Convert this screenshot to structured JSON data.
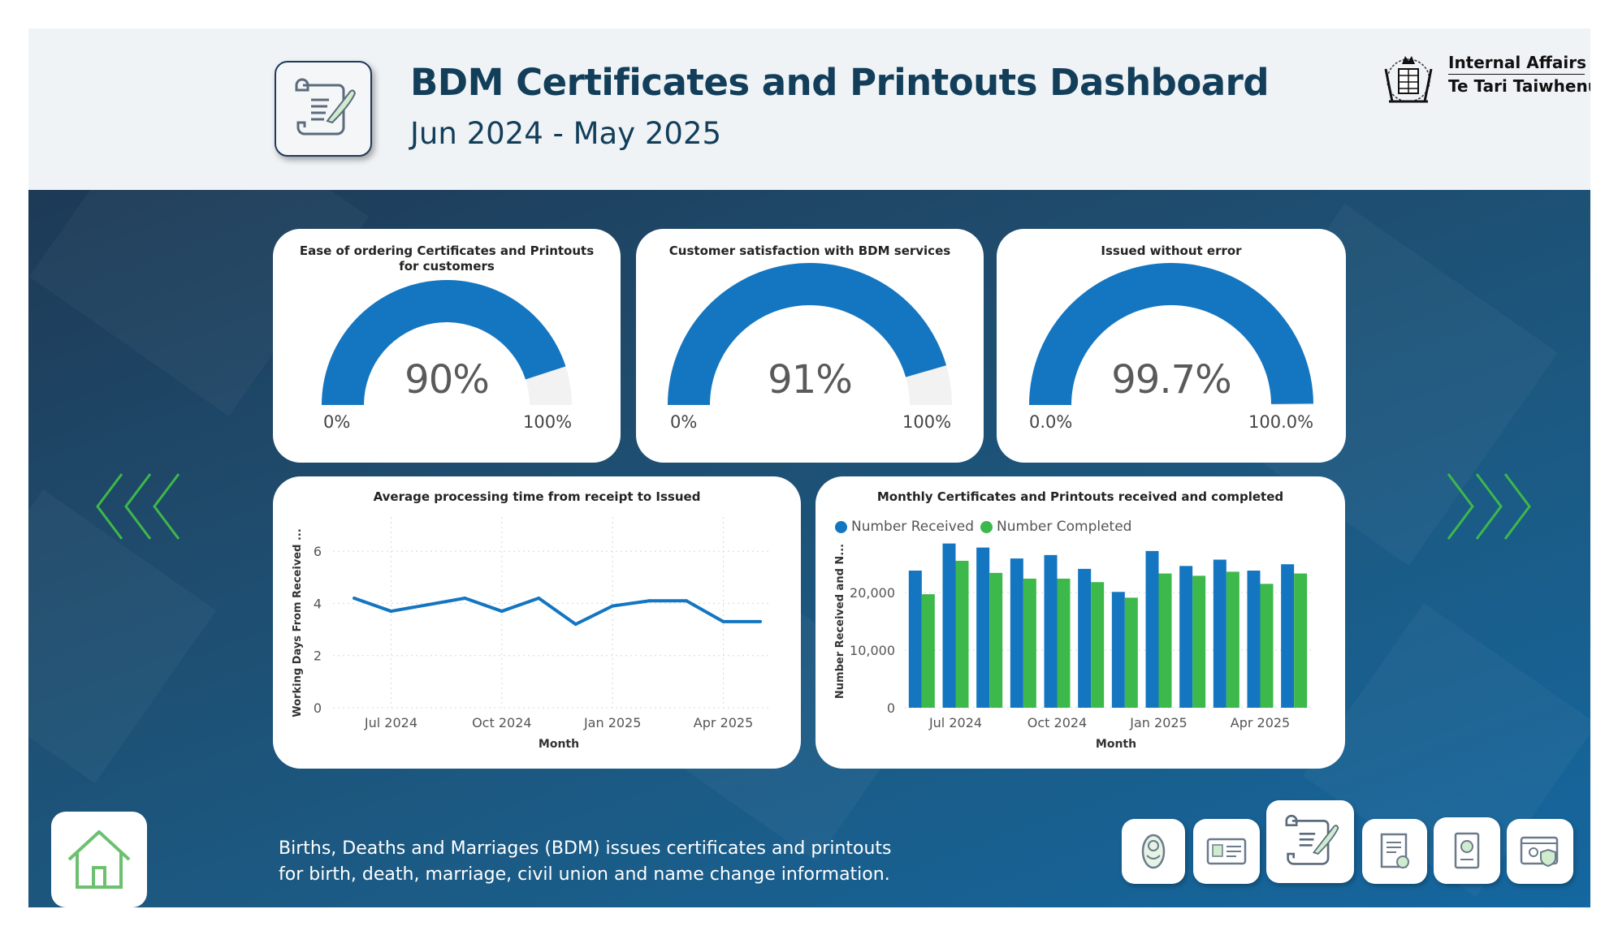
{
  "header": {
    "title": "BDM Certificates and Printouts Dashboard",
    "subtitle": "Jun 2024 - May 2025",
    "icon": "scroll-quill-icon",
    "logo": {
      "line1": "Internal Affairs",
      "line2": "Te Tari Taiwhenua",
      "icon": "nz-coat-of-arms-icon"
    }
  },
  "gauges": [
    {
      "title": "Ease of ordering Certificates and Printouts for customers",
      "value_label": "90%",
      "value": 0.9,
      "min_label": "0%",
      "max_label": "100%"
    },
    {
      "title": "Customer satisfaction with BDM services",
      "value_label": "91%",
      "value": 0.91,
      "min_label": "0%",
      "max_label": "100%"
    },
    {
      "title": "Issued without error",
      "value_label": "99.7%",
      "value": 0.997,
      "min_label": "0.0%",
      "max_label": "100.0%"
    }
  ],
  "colors": {
    "gauge_fill": "#1476c0",
    "gauge_track": "#f2f2f2",
    "received": "#1476c0",
    "completed": "#3db84a",
    "line": "#1476c0",
    "chevron": "#3db84a",
    "title_text": "#123e5a"
  },
  "chart_data": [
    {
      "type": "line",
      "title": "Average processing time from receipt to Issued",
      "xlabel": "Month",
      "ylabel": "Working Days From Received ...",
      "x": [
        "2024-06",
        "2024-07",
        "2024-08",
        "2024-09",
        "2024-10",
        "2024-11",
        "2024-12",
        "2025-01",
        "2025-02",
        "2025-03",
        "2025-04",
        "2025-05"
      ],
      "x_tick_labels": [
        "Jul 2024",
        "Oct 2024",
        "Jan 2025",
        "Apr 2025"
      ],
      "x_tick_index": [
        1,
        4,
        7,
        10
      ],
      "y_ticks": [
        0,
        2,
        4,
        6
      ],
      "ylim": [
        0,
        7
      ],
      "series": [
        {
          "values": [
            4.2,
            3.7,
            3.95,
            4.2,
            3.7,
            4.2,
            3.2,
            3.9,
            4.1,
            4.1,
            3.3,
            3.3
          ]
        }
      ],
      "grid": true
    },
    {
      "type": "bar",
      "title": "Monthly Certificates and Printouts received and completed",
      "xlabel": "Month",
      "ylabel": "Number Received and N...",
      "categories": [
        "2024-06",
        "2024-07",
        "2024-08",
        "2024-09",
        "2024-10",
        "2024-11",
        "2024-12",
        "2025-01",
        "2025-02",
        "2025-03",
        "2025-04",
        "2025-05"
      ],
      "x_tick_labels": [
        "Jul 2024",
        "Oct 2024",
        "Jan 2025",
        "Apr 2025"
      ],
      "x_tick_index": [
        1,
        4,
        7,
        10
      ],
      "y_ticks": [
        0,
        10000,
        20000
      ],
      "y_tick_labels": [
        "0",
        "10,000",
        "20,000"
      ],
      "ylim": [
        0,
        30000
      ],
      "legend_position": "top-left",
      "series": [
        {
          "name": "Number Received",
          "values": [
            23800,
            28500,
            27800,
            25900,
            26500,
            24100,
            20100,
            27200,
            24600,
            25700,
            23800,
            24900
          ]
        },
        {
          "name": "Number Completed",
          "values": [
            19700,
            25500,
            23400,
            22400,
            22400,
            21800,
            19100,
            23300,
            22900,
            23600,
            21500,
            23300
          ]
        }
      ],
      "grid": true
    }
  ],
  "description": "Births, Deaths and Marriages (BDM) issues certificates and printouts for birth, death, marriage, civil union and name change information.",
  "nav": {
    "home_icon": "home-icon",
    "prev_icon": "chevrons-left-icon",
    "next_icon": "chevrons-right-icon",
    "buttons": [
      {
        "icon": "baby-icon",
        "active": false
      },
      {
        "icon": "id-card-icon",
        "active": false
      },
      {
        "icon": "scroll-quill-icon",
        "active": true
      },
      {
        "icon": "certificate-icon",
        "active": false
      },
      {
        "icon": "passport-icon",
        "active": false
      },
      {
        "icon": "identity-shield-icon",
        "active": false
      }
    ]
  }
}
